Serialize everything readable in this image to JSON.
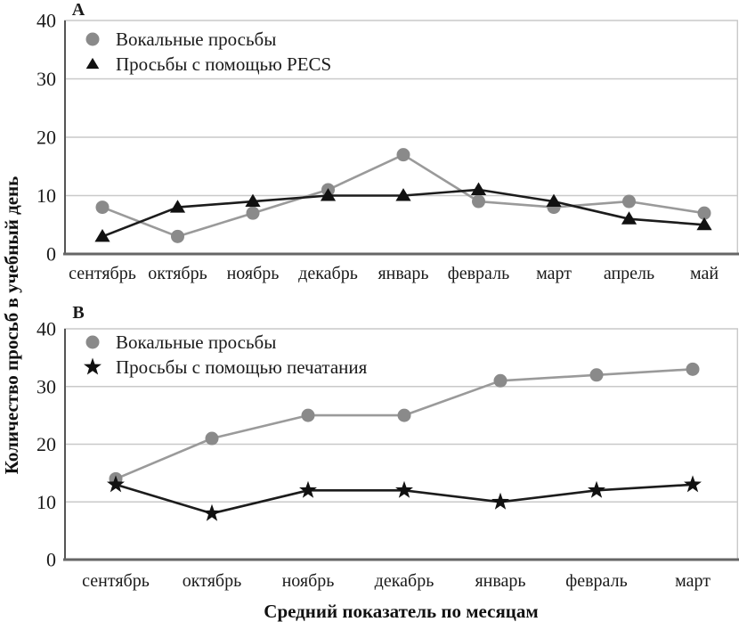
{
  "figure": {
    "y_axis_title": "Количество просьб в учебный день",
    "x_axis_title": "Средний показатель по месяцам",
    "accent_color": "#1e6fb8",
    "grid_color": "#c9c9c9",
    "y_axis_color": "#555555",
    "x_axis_color": "#666666"
  },
  "chart_data": [
    {
      "type": "line",
      "panel_label": "A",
      "categories": [
        "сентябрь",
        "октябрь",
        "ноябрь",
        "декабрь",
        "январь",
        "февраль",
        "март",
        "апрель",
        "май"
      ],
      "series": [
        {
          "name": "Вокальные просьбы",
          "marker": "circle",
          "marker_color": "#8a8a8a",
          "line_color": "#9a9a9a",
          "values": [
            8,
            3,
            7,
            11,
            17,
            9,
            8,
            9,
            7
          ]
        },
        {
          "name": "Просьбы с помощью PECS",
          "marker": "triangle",
          "marker_color": "#111111",
          "line_color": "#1c1c1c",
          "values": [
            3,
            8,
            9,
            10,
            10,
            11,
            9,
            6,
            5
          ]
        }
      ],
      "ylim": [
        0,
        40
      ],
      "yticks": [
        0,
        10,
        20,
        30,
        40
      ],
      "grid": "horizontal",
      "legend_position": "top-left"
    },
    {
      "type": "line",
      "panel_label": "B",
      "categories": [
        "сентябрь",
        "октябрь",
        "ноябрь",
        "декабрь",
        "январь",
        "февраль",
        "март"
      ],
      "series": [
        {
          "name": "Вокальные просьбы",
          "marker": "circle",
          "marker_color": "#8a8a8a",
          "line_color": "#9a9a9a",
          "values": [
            14,
            21,
            25,
            25,
            31,
            32,
            33
          ]
        },
        {
          "name": "Просьбы с помощью печатания",
          "marker": "star",
          "marker_color": "#111111",
          "line_color": "#1c1c1c",
          "values": [
            13,
            8,
            12,
            12,
            10,
            12,
            13
          ]
        }
      ],
      "ylim": [
        0,
        40
      ],
      "yticks": [
        0,
        10,
        20,
        30,
        40
      ],
      "grid": "horizontal",
      "legend_position": "top-left"
    }
  ]
}
